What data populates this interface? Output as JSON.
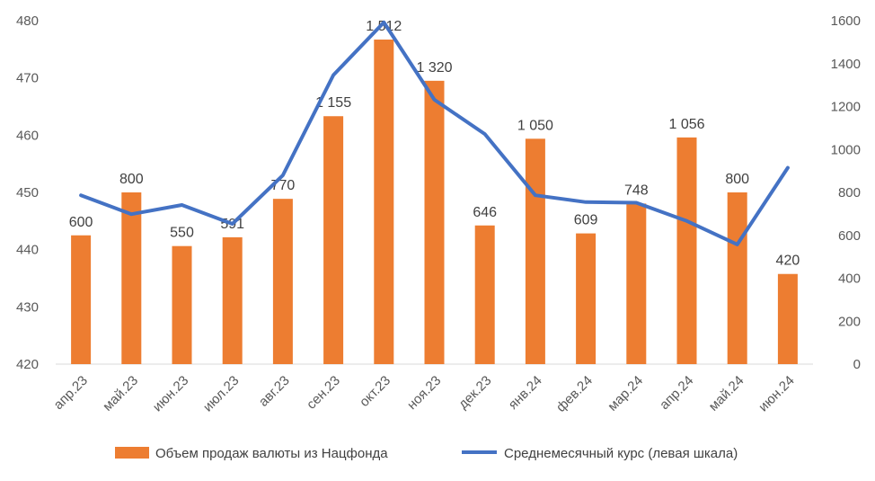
{
  "chart_data": {
    "type": "bar+line",
    "categories": [
      "апр.23",
      "май.23",
      "июн.23",
      "июл.23",
      "авг.23",
      "сен.23",
      "окт.23",
      "ноя.23",
      "дек.23",
      "янв.24",
      "фев.24",
      "мар.24",
      "апр.24",
      "май.24",
      "июн.24"
    ],
    "bar_labels": [
      "600",
      "800",
      "550",
      "591",
      "770",
      "1 155",
      "1 512",
      "1 320",
      "646",
      "1 050",
      "609",
      "748",
      "1 056",
      "800",
      "420"
    ],
    "series": [
      {
        "name": "Объем продаж валюты из Нацфонда",
        "type": "bar",
        "axis": "right",
        "color": "#ED7D31",
        "values": [
          600,
          800,
          550,
          591,
          770,
          1155,
          1512,
          1320,
          646,
          1050,
          609,
          748,
          1056,
          800,
          420
        ]
      },
      {
        "name": "Среднемесячный курс (левая шкала)",
        "type": "line",
        "axis": "left",
        "color": "#4472C4",
        "values": [
          449.5,
          446.2,
          447.8,
          444.5,
          453.0,
          470.5,
          479.7,
          466.2,
          460.2,
          449.5,
          448.3,
          448.2,
          445.0,
          440.9,
          454.3
        ]
      }
    ],
    "y_left": {
      "min": 420,
      "max": 480,
      "ticks": [
        "420",
        "430",
        "440",
        "450",
        "460",
        "470",
        "480"
      ]
    },
    "y_right": {
      "min": 0,
      "max": 1600,
      "ticks": [
        "0",
        "200",
        "400",
        "600",
        "800",
        "1000",
        "1200",
        "1400",
        "1600"
      ]
    },
    "grid": false,
    "legend_position": "bottom"
  }
}
